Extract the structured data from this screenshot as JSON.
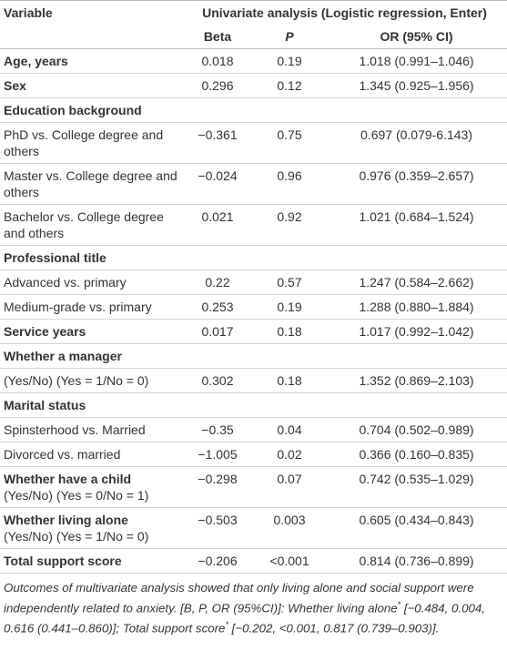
{
  "table": {
    "header": {
      "variable": "Variable",
      "group": "Univariate analysis (Logistic regression, Enter)",
      "beta": "Beta",
      "p": "P",
      "or": "OR (95% CI)"
    },
    "rows": [
      {
        "label": "Age, years",
        "bold": true,
        "beta": "0.018",
        "p": "0.19",
        "or": "1.018 (0.991–1.046)"
      },
      {
        "label": "Sex",
        "bold": true,
        "beta": "0.296",
        "p": "0.12",
        "or": "1.345 (0.925–1.956)"
      },
      {
        "label": "Education background",
        "bold": true
      },
      {
        "label": "PhD vs. College degree and others",
        "beta": "−0.361",
        "p": "0.75",
        "or": "0.697 (0.079-6.143)"
      },
      {
        "label": "Master vs. College degree and others",
        "beta": "−0.024",
        "p": "0.96",
        "or": "0.976 (0.359–2.657)"
      },
      {
        "label": "Bachelor vs. College degree and others",
        "beta": "0.021",
        "p": "0.92",
        "or": "1.021 (0.684–1.524)"
      },
      {
        "label": "Professional title",
        "bold": true
      },
      {
        "label": "Advanced vs. primary",
        "beta": "0.22",
        "p": "0.57",
        "or": "1.247 (0.584–2.662)"
      },
      {
        "label": "Medium-grade vs. primary",
        "beta": "0.253",
        "p": "0.19",
        "or": "1.288 (0.880–1.884)"
      },
      {
        "label": "Service years",
        "bold": true,
        "beta": "0.017",
        "p": "0.18",
        "or": "1.017 (0.992–1.042)"
      },
      {
        "label": "Whether a manager",
        "bold": true
      },
      {
        "label": "(Yes/No) (Yes = 1/No = 0)",
        "beta": "0.302",
        "p": "0.18",
        "or": "1.352 (0.869–2.103)"
      },
      {
        "label": "Marital status",
        "bold": true
      },
      {
        "label": "Spinsterhood vs. Married",
        "beta": "−0.35",
        "p": "0.04",
        "or": "0.704 (0.502–0.989)"
      },
      {
        "label": "Divorced vs. married",
        "beta": "−1.005",
        "p": "0.02",
        "or": "0.366 (0.160–0.835)"
      },
      {
        "label": "Whether have a child",
        "bold": true,
        "note": "(Yes/No) (Yes = 0/No = 1)",
        "beta": "−0.298",
        "p": "0.07",
        "or": "0.742 (0.535–1.029)"
      },
      {
        "label": "Whether living alone",
        "bold": true,
        "note": "(Yes/No) (Yes = 1/No = 0)",
        "beta": "−0.503",
        "p": "0.003",
        "or": "0.605 (0.434–0.843)"
      },
      {
        "label": "Total support score",
        "bold": true,
        "beta": "−0.206",
        "p": "<0.001",
        "or": "0.814 (0.736–0.899)"
      }
    ]
  },
  "footnote": [
    "Outcomes of multivariate analysis showed that only living alone and social support were independently related to anxiety. [B, P, OR (95%CI)]: Whether living alone",
    "*",
    " [−0.484, 0.004, 0.616 (0.441–0.860)]; Total support score",
    "*",
    " [−0.202, <0.001, 0.817 (0.739–0.903)]."
  ]
}
